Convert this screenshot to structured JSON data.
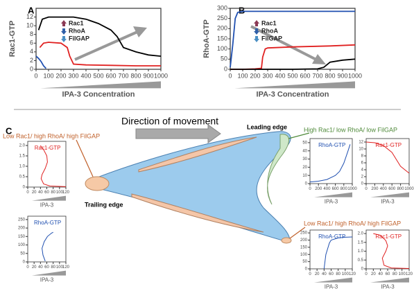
{
  "figure": {
    "panel_labels": [
      "A",
      "B",
      "C"
    ],
    "direction": "Direction of movement",
    "leading_edge": "Leading edge",
    "trailing_edge": "Trailing edge",
    "state_front": "High Rac1/ low RhoA/ low FilGAP",
    "state_rear_left": "Low Rac1/ high RhoA/ high FilGAP",
    "state_rear_right": "Low Rac1/ high RhoA/ high FilGAP"
  },
  "chart_data": [
    {
      "type": "line",
      "ylabel": "Rac1-GTP",
      "xlabel": "IPA-3 Concentration",
      "xlim": [
        0,
        1000
      ],
      "xticks": [
        0,
        100,
        200,
        300,
        400,
        500,
        600,
        700,
        800,
        900,
        1000
      ],
      "ylim": [
        0,
        14
      ],
      "yticks": [
        0,
        2,
        4,
        6,
        8,
        10,
        12
      ],
      "legend": [
        {
          "label": "Rac1",
          "color": "#8b3a55",
          "direction": "up"
        },
        {
          "label": "RhoA",
          "color": "#2f5fa8",
          "direction": "down"
        },
        {
          "label": "FilGAP",
          "color": "#4a8fc4",
          "direction": "down"
        }
      ],
      "series": [
        {
          "color": "#000000",
          "x": [
            20,
            50,
            100,
            200,
            300,
            400,
            500,
            600,
            650,
            700,
            800,
            900,
            1000
          ],
          "values": [
            9,
            11.5,
            12,
            12,
            12,
            11.5,
            10.5,
            9,
            7.5,
            5,
            4,
            3.3,
            3
          ]
        },
        {
          "color": "#e02020",
          "x": [
            30,
            60,
            100,
            200,
            250,
            270,
            300,
            400,
            600,
            800,
            1000
          ],
          "values": [
            5,
            6,
            6.2,
            6,
            5,
            3,
            1.2,
            1,
            0.9,
            0.8,
            0.8
          ]
        },
        {
          "color": "#1f4fb0",
          "x": [
            0,
            20,
            40,
            60,
            80
          ],
          "values": [
            3,
            2.5,
            1.8,
            0.8,
            0.2
          ]
        }
      ]
    },
    {
      "type": "line",
      "ylabel": "RhoA-GTP",
      "xlabel": "IPA-3 Concentration",
      "xlim": [
        0,
        1000
      ],
      "xticks": [
        0,
        100,
        200,
        300,
        400,
        500,
        600,
        700,
        800,
        900,
        1000
      ],
      "ylim": [
        0,
        300
      ],
      "yticks": [
        0,
        50,
        100,
        150,
        200,
        250,
        300
      ],
      "legend": [
        {
          "label": "Rac1",
          "color": "#8b3a55",
          "direction": "up"
        },
        {
          "label": "RhoA",
          "color": "#2f5fa8",
          "direction": "down"
        },
        {
          "label": "FilGAP",
          "color": "#4a8fc4",
          "direction": "down"
        }
      ],
      "series": [
        {
          "color": "#1f4fb0",
          "x": [
            0,
            20,
            40,
            60,
            100,
            300,
            600,
            1000
          ],
          "values": [
            10,
            120,
            250,
            280,
            285,
            285,
            285,
            285
          ]
        },
        {
          "color": "#e02020",
          "x": [
            0,
            100,
            200,
            250,
            260,
            280,
            300,
            500,
            800,
            1000
          ],
          "values": [
            0,
            0,
            2,
            5,
            60,
            100,
            105,
            110,
            115,
            120
          ]
        },
        {
          "color": "#000000",
          "x": [
            0,
            500,
            700,
            750,
            800,
            900,
            1000
          ],
          "values": [
            0,
            0,
            2,
            10,
            35,
            45,
            50
          ]
        }
      ]
    },
    {
      "type": "line",
      "title": "Rac1-GTP",
      "xlabel": "IPA-3",
      "xlim": [
        0,
        120
      ],
      "xticks": [
        0,
        20,
        40,
        60,
        80,
        100,
        120
      ],
      "ylim": [
        0,
        2.2
      ],
      "yticks": [
        0,
        0.5,
        {
          "value": 1,
          "label": "1.0"
        },
        1.5,
        {
          "value": 2,
          "label": "2.0"
        }
      ],
      "series": [
        {
          "color": "#e02020",
          "x": [
            40,
            50,
            60,
            62,
            55,
            45,
            42,
            50,
            70,
            120
          ],
          "values": [
            2.0,
            1.8,
            1.5,
            1.2,
            0.9,
            0.6,
            0.4,
            0.15,
            0.05,
            0.02
          ]
        }
      ]
    },
    {
      "type": "line",
      "title": "RhoA-GTP",
      "xlabel": "IPA-3",
      "xlim": [
        0,
        120
      ],
      "xticks": [
        0,
        20,
        40,
        60,
        80,
        100,
        120
      ],
      "ylim": [
        0,
        270
      ],
      "yticks": [
        0,
        50,
        100,
        150,
        200,
        250
      ],
      "series": [
        {
          "color": "#1f4fb0",
          "x": [
            55,
            48,
            45,
            52,
            62,
            75,
            80
          ],
          "values": [
            5,
            40,
            80,
            120,
            150,
            170,
            175
          ]
        }
      ]
    },
    {
      "type": "line",
      "title": "RhoA-GTP",
      "xlabel": "IPA-3",
      "xlim": [
        0,
        1000
      ],
      "xticks": [
        0,
        200,
        400,
        600,
        800,
        1000
      ],
      "ylim": [
        0,
        55
      ],
      "yticks": [
        0,
        10,
        20,
        30,
        40,
        50
      ],
      "series": [
        {
          "color": "#1f4fb0",
          "x": [
            0,
            200,
            400,
            600,
            700,
            800,
            900,
            950
          ],
          "values": [
            2,
            3,
            5,
            10,
            15,
            25,
            40,
            48
          ]
        }
      ]
    },
    {
      "type": "line",
      "title": "Rac1-GTP",
      "xlabel": "IPA-3",
      "xlim": [
        0,
        1000
      ],
      "xticks": [
        0,
        200,
        400,
        600,
        800,
        1000
      ],
      "ylim": [
        0,
        13
      ],
      "yticks": [
        0,
        2,
        4,
        6,
        8,
        10,
        12
      ],
      "series": [
        {
          "color": "#e02020",
          "x": [
            0,
            200,
            400,
            600,
            800,
            1000
          ],
          "values": [
            12,
            11.8,
            11,
            9,
            5,
            3
          ]
        }
      ]
    },
    {
      "type": "line",
      "title": "RhoA-GTP",
      "xlabel": "IPA-3",
      "xlim": [
        0,
        120
      ],
      "xticks": [
        0,
        20,
        40,
        60,
        80,
        100,
        120
      ],
      "ylim": [
        0,
        270
      ],
      "yticks": [
        0,
        50,
        100,
        150,
        200,
        250
      ],
      "series": [
        {
          "color": "#1f4fb0",
          "x": [
            40,
            45,
            55,
            60,
            80,
            100,
            120
          ],
          "values": [
            0,
            100,
            180,
            200,
            215,
            220,
            222
          ]
        }
      ]
    },
    {
      "type": "line",
      "title": "Rac1-GTP",
      "xlabel": "IPA-3",
      "xlim": [
        0,
        120
      ],
      "xticks": [
        0,
        20,
        40,
        60,
        80,
        100,
        120
      ],
      "ylim": [
        0,
        2.2
      ],
      "yticks": [
        0,
        0.5,
        {
          "value": 1,
          "label": "1.0"
        },
        1.5,
        {
          "value": 2,
          "label": "2.0"
        }
      ],
      "series": [
        {
          "color": "#e02020",
          "x": [
            20,
            40,
            55,
            60,
            55,
            45,
            50,
            70,
            120
          ],
          "values": [
            2.0,
            1.9,
            1.6,
            1.3,
            1.0,
            0.6,
            0.2,
            0.05,
            0.02
          ]
        }
      ]
    }
  ]
}
